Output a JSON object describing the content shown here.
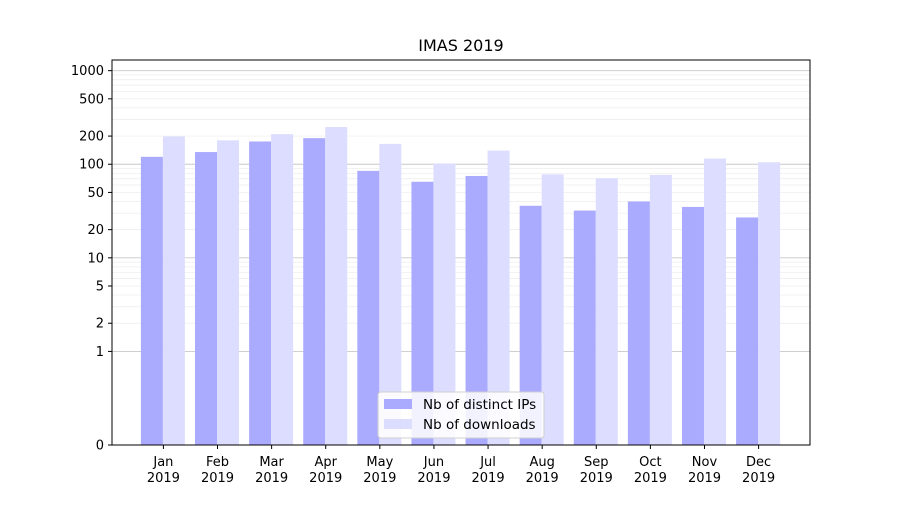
{
  "chart_data": {
    "type": "bar",
    "title": "IMAS 2019",
    "xlabel": "",
    "ylabel": "",
    "yscale": "symlog",
    "ylim": [
      0,
      1300
    ],
    "y_ticks": [
      0,
      1,
      2,
      5,
      10,
      20,
      50,
      100,
      200,
      500,
      1000
    ],
    "categories": [
      [
        "Jan",
        "2019"
      ],
      [
        "Feb",
        "2019"
      ],
      [
        "Mar",
        "2019"
      ],
      [
        "Apr",
        "2019"
      ],
      [
        "May",
        "2019"
      ],
      [
        "Jun",
        "2019"
      ],
      [
        "Jul",
        "2019"
      ],
      [
        "Aug",
        "2019"
      ],
      [
        "Sep",
        "2019"
      ],
      [
        "Oct",
        "2019"
      ],
      [
        "Nov",
        "2019"
      ],
      [
        "Dec",
        "2019"
      ]
    ],
    "series": [
      {
        "name": "Nb of distinct IPs",
        "color": "#aaaaff",
        "values": [
          120,
          135,
          175,
          190,
          85,
          65,
          75,
          36,
          32,
          40,
          35,
          27
        ]
      },
      {
        "name": "Nb of downloads",
        "color": "#ddddff",
        "values": [
          198,
          180,
          210,
          250,
          165,
          102,
          140,
          78,
          71,
          77,
          115,
          105
        ]
      }
    ],
    "grid": true,
    "legend_position": "lower-center"
  }
}
